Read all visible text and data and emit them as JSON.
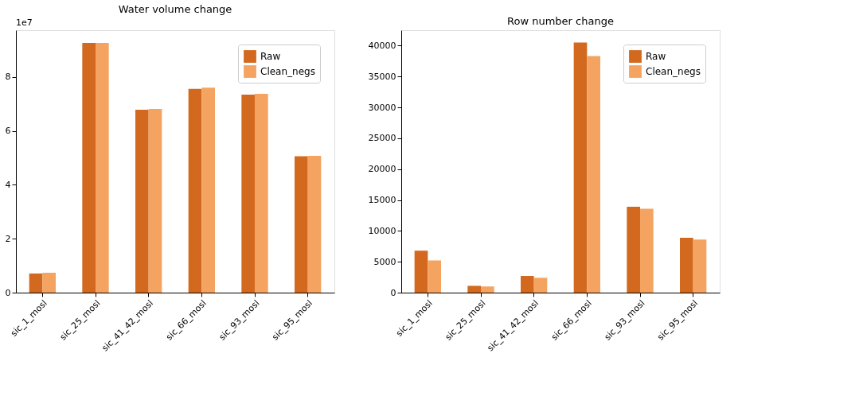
{
  "chart_data": [
    {
      "type": "bar",
      "title": "Water volume change",
      "categories": [
        "sic_1_mosl",
        "sic_25_mosl",
        "sic_41_42_mosl",
        "sic_66_mosl",
        "sic_93_mosl",
        "sic_95_mosl"
      ],
      "series": [
        {
          "name": "Raw",
          "color": "#d2691e",
          "values": [
            0.71,
            9.27,
            6.79,
            7.56,
            7.35,
            5.06
          ]
        },
        {
          "name": "Clean_negs",
          "color": "#f4a460",
          "values": [
            0.74,
            9.27,
            6.82,
            7.61,
            7.38,
            5.08
          ]
        }
      ],
      "ylim": [
        0,
        9.74
      ],
      "yticks": [
        0,
        2,
        4,
        6,
        8
      ],
      "annotations": [
        "1e7"
      ],
      "legend": "top right"
    },
    {
      "type": "bar",
      "title": "Row number change",
      "categories": [
        "sic_1_mosl",
        "sic_25_mosl",
        "sic_41_42_mosl",
        "sic_66_mosl",
        "sic_93_mosl",
        "sic_95_mosl"
      ],
      "series": [
        {
          "name": "Raw",
          "color": "#d2691e",
          "values": [
            6800,
            1100,
            2700,
            40500,
            13900,
            8900
          ]
        },
        {
          "name": "Clean_negs",
          "color": "#f4a460",
          "values": [
            5200,
            1000,
            2400,
            38300,
            13600,
            8600
          ]
        }
      ],
      "ylim": [
        0,
        42500
      ],
      "yticks": [
        0,
        5000,
        10000,
        15000,
        20000,
        25000,
        30000,
        35000,
        40000
      ],
      "legend": "top right"
    }
  ]
}
